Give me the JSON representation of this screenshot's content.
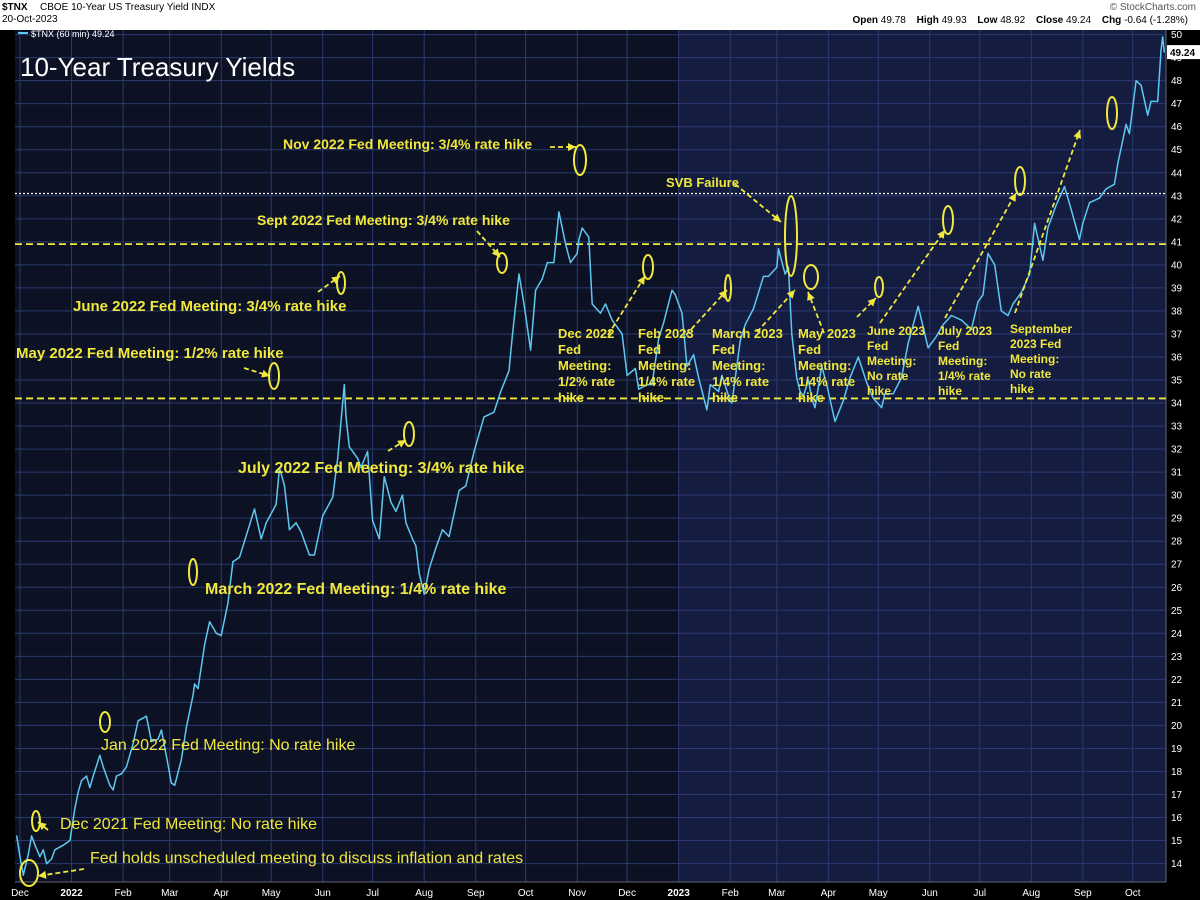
{
  "header": {
    "symbol": "$TNX",
    "description": "CBOE 10-Year US Treasury Yield  INDX",
    "date": "20-Oct-2023",
    "brand": "© StockCharts.com",
    "ohlc": {
      "open_label": "Open",
      "open": "49.78",
      "high_label": "High",
      "high": "49.93",
      "low_label": "Low",
      "low": "48.92",
      "close_label": "Close",
      "close": "49.24",
      "chg_label": "Chg",
      "chg": "-0.64 (-1.28%)"
    }
  },
  "colors": {
    "background": "#000000",
    "panel_2022": "#0d1124",
    "panel_2023": "#141c40",
    "grid": "#2a3a70",
    "price_line": "#5ec8f0",
    "annotation": "#f0e83c",
    "reference_line": "#f0e83c"
  },
  "chart_data": {
    "type": "line",
    "title": "10-Year Treasury Yields",
    "legend": "$TNX (60 min) 49.24",
    "last_value_label": "49.24",
    "ylim": [
      13.2,
      50.2
    ],
    "y_ticks": [
      14,
      15,
      16,
      17,
      18,
      19,
      20,
      21,
      22,
      23,
      24,
      25,
      26,
      27,
      28,
      29,
      30,
      31,
      32,
      33,
      34,
      35,
      36,
      37,
      38,
      39,
      40,
      41,
      42,
      43,
      44,
      45,
      46,
      47,
      48,
      49,
      50
    ],
    "x_labels": [
      {
        "label": "Dec",
        "date": "2021-12-01",
        "bold": false
      },
      {
        "label": "2022",
        "date": "2022-01-01",
        "bold": true
      },
      {
        "label": "Feb",
        "date": "2022-02-01",
        "bold": false
      },
      {
        "label": "Mar",
        "date": "2022-03-01",
        "bold": false
      },
      {
        "label": "Apr",
        "date": "2022-04-01",
        "bold": false
      },
      {
        "label": "May",
        "date": "2022-05-01",
        "bold": false
      },
      {
        "label": "Jun",
        "date": "2022-06-01",
        "bold": false
      },
      {
        "label": "Jul",
        "date": "2022-07-01",
        "bold": false
      },
      {
        "label": "Aug",
        "date": "2022-08-01",
        "bold": false
      },
      {
        "label": "Sep",
        "date": "2022-09-01",
        "bold": false
      },
      {
        "label": "Oct",
        "date": "2022-10-01",
        "bold": false
      },
      {
        "label": "Nov",
        "date": "2022-11-01",
        "bold": false
      },
      {
        "label": "Dec",
        "date": "2022-12-01",
        "bold": false
      },
      {
        "label": "2023",
        "date": "2023-01-01",
        "bold": true
      },
      {
        "label": "Feb",
        "date": "2023-02-01",
        "bold": false
      },
      {
        "label": "Mar",
        "date": "2023-03-01",
        "bold": false
      },
      {
        "label": "Apr",
        "date": "2023-04-01",
        "bold": false
      },
      {
        "label": "May",
        "date": "2023-05-01",
        "bold": false
      },
      {
        "label": "Jun",
        "date": "2023-06-01",
        "bold": false
      },
      {
        "label": "Jul",
        "date": "2023-07-01",
        "bold": false
      },
      {
        "label": "Aug",
        "date": "2023-08-01",
        "bold": false
      },
      {
        "label": "Sep",
        "date": "2023-09-01",
        "bold": false
      },
      {
        "label": "Oct",
        "date": "2023-10-01",
        "bold": false
      }
    ],
    "reference_lines": [
      {
        "y": 43.1,
        "style": "dotted-white"
      },
      {
        "y": 40.9,
        "style": "dashed-yellow"
      },
      {
        "y": 34.2,
        "style": "dashed-yellow"
      }
    ],
    "series": [
      {
        "points": [
          [
            "2021-11-29",
            15.2
          ],
          [
            "2021-12-01",
            14.3
          ],
          [
            "2021-12-03",
            13.5
          ],
          [
            "2021-12-06",
            14.4
          ],
          [
            "2021-12-08",
            15.2
          ],
          [
            "2021-12-10",
            14.8
          ],
          [
            "2021-12-13",
            14.3
          ],
          [
            "2021-12-15",
            14.6
          ],
          [
            "2021-12-17",
            14.0
          ],
          [
            "2021-12-20",
            14.2
          ],
          [
            "2021-12-22",
            14.6
          ],
          [
            "2021-12-27",
            14.8
          ],
          [
            "2021-12-31",
            15.0
          ],
          [
            "2022-01-03",
            16.4
          ],
          [
            "2022-01-05",
            17.1
          ],
          [
            "2022-01-07",
            17.6
          ],
          [
            "2022-01-10",
            17.8
          ],
          [
            "2022-01-12",
            17.3
          ],
          [
            "2022-01-14",
            17.8
          ],
          [
            "2022-01-18",
            18.7
          ],
          [
            "2022-01-20",
            18.2
          ],
          [
            "2022-01-24",
            17.4
          ],
          [
            "2022-01-26",
            17.2
          ],
          [
            "2022-01-28",
            17.8
          ],
          [
            "2022-01-31",
            17.9
          ],
          [
            "2022-02-03",
            18.2
          ],
          [
            "2022-02-07",
            19.2
          ],
          [
            "2022-02-10",
            20.2
          ],
          [
            "2022-02-15",
            20.4
          ],
          [
            "2022-02-18",
            19.3
          ],
          [
            "2022-02-22",
            19.4
          ],
          [
            "2022-02-24",
            19.8
          ],
          [
            "2022-02-28",
            18.3
          ],
          [
            "2022-03-02",
            17.5
          ],
          [
            "2022-03-04",
            17.4
          ],
          [
            "2022-03-08",
            18.5
          ],
          [
            "2022-03-11",
            19.9
          ],
          [
            "2022-03-15",
            21.3
          ],
          [
            "2022-03-16",
            21.8
          ],
          [
            "2022-03-18",
            21.6
          ],
          [
            "2022-03-22",
            23.5
          ],
          [
            "2022-03-25",
            24.5
          ],
          [
            "2022-03-29",
            24.0
          ],
          [
            "2022-04-01",
            23.9
          ],
          [
            "2022-04-05",
            25.3
          ],
          [
            "2022-04-08",
            27.1
          ],
          [
            "2022-04-12",
            27.3
          ],
          [
            "2022-04-18",
            28.7
          ],
          [
            "2022-04-21",
            29.4
          ],
          [
            "2022-04-25",
            28.1
          ],
          [
            "2022-04-28",
            28.8
          ],
          [
            "2022-05-04",
            29.6
          ],
          [
            "2022-05-06",
            31.2
          ],
          [
            "2022-05-09",
            30.4
          ],
          [
            "2022-05-12",
            28.5
          ],
          [
            "2022-05-16",
            28.8
          ],
          [
            "2022-05-19",
            28.4
          ],
          [
            "2022-05-24",
            27.4
          ],
          [
            "2022-05-27",
            27.4
          ],
          [
            "2022-06-01",
            29.1
          ],
          [
            "2022-06-07",
            29.9
          ],
          [
            "2022-06-10",
            31.6
          ],
          [
            "2022-06-14",
            34.8
          ],
          [
            "2022-06-15",
            33.4
          ],
          [
            "2022-06-17",
            32.1
          ],
          [
            "2022-06-22",
            31.6
          ],
          [
            "2022-06-24",
            31.2
          ],
          [
            "2022-06-28",
            31.9
          ],
          [
            "2022-07-01",
            28.9
          ],
          [
            "2022-07-05",
            28.1
          ],
          [
            "2022-07-08",
            30.8
          ],
          [
            "2022-07-12",
            29.7
          ],
          [
            "2022-07-15",
            29.3
          ],
          [
            "2022-07-19",
            30.0
          ],
          [
            "2022-07-21",
            28.8
          ],
          [
            "2022-07-25",
            28.1
          ],
          [
            "2022-07-27",
            27.8
          ],
          [
            "2022-07-29",
            26.6
          ],
          [
            "2022-08-01",
            25.7
          ],
          [
            "2022-08-04",
            26.8
          ],
          [
            "2022-08-08",
            27.7
          ],
          [
            "2022-08-12",
            28.5
          ],
          [
            "2022-08-16",
            28.2
          ],
          [
            "2022-08-22",
            30.2
          ],
          [
            "2022-08-26",
            30.4
          ],
          [
            "2022-08-31",
            31.9
          ],
          [
            "2022-09-06",
            33.4
          ],
          [
            "2022-09-12",
            33.6
          ],
          [
            "2022-09-16",
            34.5
          ],
          [
            "2022-09-21",
            35.4
          ],
          [
            "2022-09-23",
            36.9
          ],
          [
            "2022-09-27",
            39.6
          ],
          [
            "2022-09-30",
            38.3
          ],
          [
            "2022-10-04",
            36.3
          ],
          [
            "2022-10-07",
            38.9
          ],
          [
            "2022-10-11",
            39.4
          ],
          [
            "2022-10-14",
            40.1
          ],
          [
            "2022-10-18",
            40.1
          ],
          [
            "2022-10-21",
            42.3
          ],
          [
            "2022-10-25",
            40.9
          ],
          [
            "2022-10-28",
            40.1
          ],
          [
            "2022-11-01",
            40.5
          ],
          [
            "2022-11-02",
            41.1
          ],
          [
            "2022-11-04",
            41.6
          ],
          [
            "2022-11-08",
            41.2
          ],
          [
            "2022-11-10",
            38.3
          ],
          [
            "2022-11-15",
            37.9
          ],
          [
            "2022-11-18",
            38.3
          ],
          [
            "2022-11-22",
            37.6
          ],
          [
            "2022-11-28",
            37.0
          ],
          [
            "2022-12-01",
            35.2
          ],
          [
            "2022-12-06",
            35.5
          ],
          [
            "2022-12-08",
            34.6
          ],
          [
            "2022-12-13",
            34.8
          ],
          [
            "2022-12-14",
            34.8
          ],
          [
            "2022-12-16",
            34.8
          ],
          [
            "2022-12-20",
            36.8
          ],
          [
            "2022-12-23",
            37.5
          ],
          [
            "2022-12-28",
            38.9
          ],
          [
            "2022-12-30",
            38.7
          ],
          [
            "2023-01-03",
            37.9
          ],
          [
            "2023-01-06",
            35.6
          ],
          [
            "2023-01-10",
            36.1
          ],
          [
            "2023-01-13",
            35.1
          ],
          [
            "2023-01-18",
            33.7
          ],
          [
            "2023-01-20",
            34.8
          ],
          [
            "2023-01-25",
            34.5
          ],
          [
            "2023-01-27",
            35.2
          ],
          [
            "2023-02-01",
            34.1
          ],
          [
            "2023-02-02",
            34.0
          ],
          [
            "2023-02-07",
            36.7
          ],
          [
            "2023-02-10",
            37.4
          ],
          [
            "2023-02-15",
            38.1
          ],
          [
            "2023-02-21",
            39.5
          ],
          [
            "2023-02-24",
            39.5
          ],
          [
            "2023-03-01",
            39.9
          ],
          [
            "2023-03-02",
            40.7
          ],
          [
            "2023-03-06",
            39.6
          ],
          [
            "2023-03-08",
            39.9
          ],
          [
            "2023-03-10",
            37.0
          ],
          [
            "2023-03-13",
            35.1
          ],
          [
            "2023-03-15",
            34.5
          ],
          [
            "2023-03-17",
            34.3
          ],
          [
            "2023-03-20",
            35.0
          ],
          [
            "2023-03-22",
            34.2
          ],
          [
            "2023-03-24",
            33.8
          ],
          [
            "2023-03-28",
            35.6
          ],
          [
            "2023-03-31",
            34.8
          ],
          [
            "2023-04-05",
            33.2
          ],
          [
            "2023-04-10",
            34.1
          ],
          [
            "2023-04-14",
            35.1
          ],
          [
            "2023-04-19",
            36.0
          ],
          [
            "2023-04-24",
            34.9
          ],
          [
            "2023-04-28",
            34.2
          ],
          [
            "2023-05-03",
            33.8
          ],
          [
            "2023-05-05",
            34.4
          ],
          [
            "2023-05-10",
            34.4
          ],
          [
            "2023-05-15",
            35.1
          ],
          [
            "2023-05-19",
            36.6
          ],
          [
            "2023-05-25",
            38.2
          ],
          [
            "2023-05-31",
            36.4
          ],
          [
            "2023-06-05",
            36.9
          ],
          [
            "2023-06-09",
            37.4
          ],
          [
            "2023-06-14",
            37.8
          ],
          [
            "2023-06-20",
            37.6
          ],
          [
            "2023-06-26",
            37.2
          ],
          [
            "2023-06-30",
            38.4
          ],
          [
            "2023-07-03",
            38.7
          ],
          [
            "2023-07-06",
            40.5
          ],
          [
            "2023-07-10",
            40.0
          ],
          [
            "2023-07-14",
            38.0
          ],
          [
            "2023-07-18",
            37.8
          ],
          [
            "2023-07-21",
            38.3
          ],
          [
            "2023-07-26",
            38.8
          ],
          [
            "2023-07-31",
            39.6
          ],
          [
            "2023-08-03",
            41.8
          ],
          [
            "2023-08-08",
            40.2
          ],
          [
            "2023-08-11",
            41.6
          ],
          [
            "2023-08-16",
            42.6
          ],
          [
            "2023-08-21",
            43.4
          ],
          [
            "2023-08-25",
            42.4
          ],
          [
            "2023-08-30",
            41.1
          ],
          [
            "2023-09-01",
            41.8
          ],
          [
            "2023-09-05",
            42.7
          ],
          [
            "2023-09-11",
            42.9
          ],
          [
            "2023-09-15",
            43.3
          ],
          [
            "2023-09-20",
            43.5
          ],
          [
            "2023-09-22",
            44.4
          ],
          [
            "2023-09-27",
            46.1
          ],
          [
            "2023-09-29",
            45.7
          ],
          [
            "2023-10-03",
            48.0
          ],
          [
            "2023-10-06",
            47.8
          ],
          [
            "2023-10-10",
            46.5
          ],
          [
            "2023-10-12",
            47.1
          ],
          [
            "2023-10-16",
            47.1
          ],
          [
            "2023-10-18",
            49.3
          ],
          [
            "2023-10-19",
            49.9
          ],
          [
            "2023-10-20",
            49.24
          ]
        ]
      }
    ],
    "annotations": [
      {
        "lines": [
          "Nov 2022 Fed Meeting: 3/4% rate hike"
        ],
        "size": 14
      },
      {
        "lines": [
          "Sept 2022 Fed Meeting: 3/4% rate hike"
        ],
        "size": 14
      },
      {
        "lines": [
          "June 2022 Fed Meeting: 3/4% rate hike"
        ],
        "size": 15
      },
      {
        "lines": [
          "May 2022 Fed Meeting: 1/2% rate hike"
        ],
        "size": 15
      },
      {
        "lines": [
          "July 2022 Fed Meeting: 3/4% rate hike"
        ],
        "size": 16
      },
      {
        "lines": [
          "March 2022 Fed Meeting: 1/4% rate hike"
        ],
        "size": 16
      },
      {
        "lines": [
          "Jan 2022 Fed Meeting: No rate hike"
        ],
        "size": 16
      },
      {
        "lines": [
          "Dec 2021 Fed Meeting: No rate hike"
        ],
        "size": 16
      },
      {
        "lines": [
          "Fed holds unscheduled meeting to discuss inflation and rates"
        ],
        "size": 16
      },
      {
        "lines": [
          "SVB Failure"
        ],
        "size": 13
      },
      {
        "lines": [
          "Dec 2022",
          "Fed",
          "Meeting:",
          "1/2% rate",
          "hike"
        ],
        "size": 13
      },
      {
        "lines": [
          "Feb 2023",
          "Fed",
          "Meeting:",
          "1/4% rate",
          "hike"
        ],
        "size": 13
      },
      {
        "lines": [
          "March 2023",
          "Fed",
          "Meeting:",
          "1/4% rate",
          "hike"
        ],
        "size": 13
      },
      {
        "lines": [
          "May 2023",
          "Fed",
          "Meeting:",
          "1/4% rate",
          "hike"
        ],
        "size": 13
      },
      {
        "lines": [
          "June 2023",
          "Fed",
          "Meeting:",
          "No rate",
          "hike"
        ],
        "size": 12
      },
      {
        "lines": [
          "July 2023",
          "Fed",
          "Meeting:",
          "1/4% rate",
          "hike"
        ],
        "size": 12
      },
      {
        "lines": [
          "September",
          "2023 Fed",
          "Meeting:",
          "No rate",
          "hike"
        ],
        "size": 12
      }
    ]
  }
}
